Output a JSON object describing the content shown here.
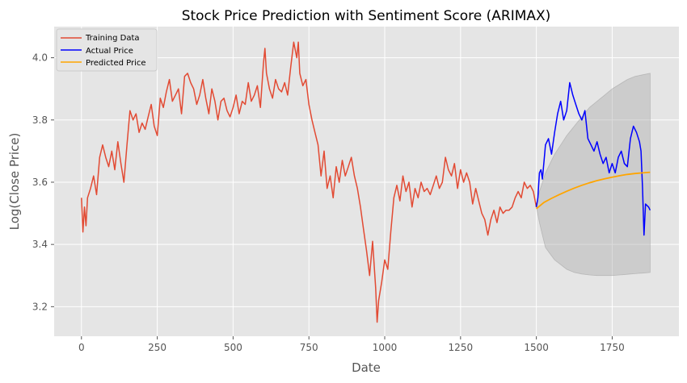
{
  "chart_data": {
    "type": "line",
    "title": "Stock Price Prediction with Sentiment Score (ARIMAX)",
    "xlabel": "Date",
    "ylabel": "Log(Close Price)",
    "xlim": [
      -90,
      1970
    ],
    "ylim": [
      3.105,
      4.1
    ],
    "x_ticks": [
      0,
      250,
      500,
      750,
      1000,
      1250,
      1500,
      1750
    ],
    "y_ticks": [
      3.2,
      3.4,
      3.6,
      3.8,
      4.0
    ],
    "y_tick_labels": [
      "3.2",
      "3.4",
      "3.6",
      "3.8",
      "4.0"
    ],
    "grid": true,
    "legend_position": "top-left",
    "series": [
      {
        "name": "Training Data",
        "color": "#e24a33",
        "x": [
          0,
          5,
          10,
          15,
          20,
          30,
          40,
          50,
          60,
          70,
          80,
          90,
          100,
          110,
          120,
          130,
          140,
          150,
          160,
          170,
          180,
          190,
          200,
          210,
          220,
          230,
          240,
          250,
          260,
          270,
          280,
          290,
          300,
          310,
          320,
          330,
          340,
          350,
          360,
          370,
          380,
          390,
          400,
          410,
          420,
          430,
          440,
          450,
          460,
          470,
          480,
          490,
          500,
          510,
          520,
          530,
          540,
          550,
          560,
          570,
          580,
          590,
          600,
          605,
          610,
          620,
          630,
          640,
          650,
          660,
          670,
          680,
          690,
          700,
          710,
          715,
          720,
          730,
          740,
          750,
          760,
          770,
          780,
          790,
          800,
          810,
          820,
          830,
          840,
          850,
          860,
          870,
          880,
          890,
          900,
          910,
          920,
          930,
          940,
          950,
          960,
          970,
          975,
          980,
          990,
          1000,
          1010,
          1020,
          1030,
          1040,
          1050,
          1060,
          1070,
          1080,
          1090,
          1100,
          1110,
          1120,
          1130,
          1140,
          1150,
          1160,
          1170,
          1180,
          1190,
          1200,
          1210,
          1220,
          1230,
          1240,
          1250,
          1260,
          1270,
          1280,
          1290,
          1300,
          1310,
          1320,
          1330,
          1340,
          1350,
          1360,
          1370,
          1380,
          1390,
          1400,
          1410,
          1420,
          1430,
          1440,
          1450,
          1460,
          1470,
          1480,
          1490,
          1500
        ],
        "y": [
          3.55,
          3.44,
          3.52,
          3.46,
          3.55,
          3.58,
          3.62,
          3.56,
          3.68,
          3.72,
          3.68,
          3.65,
          3.7,
          3.64,
          3.73,
          3.66,
          3.6,
          3.72,
          3.83,
          3.8,
          3.82,
          3.76,
          3.79,
          3.77,
          3.81,
          3.85,
          3.78,
          3.75,
          3.87,
          3.84,
          3.89,
          3.93,
          3.86,
          3.88,
          3.9,
          3.82,
          3.94,
          3.95,
          3.92,
          3.9,
          3.85,
          3.88,
          3.93,
          3.87,
          3.82,
          3.9,
          3.86,
          3.8,
          3.86,
          3.87,
          3.83,
          3.81,
          3.84,
          3.88,
          3.82,
          3.86,
          3.85,
          3.92,
          3.86,
          3.88,
          3.91,
          3.84,
          3.98,
          4.03,
          3.95,
          3.9,
          3.87,
          3.93,
          3.9,
          3.89,
          3.92,
          3.88,
          3.97,
          4.05,
          4.0,
          4.05,
          3.95,
          3.91,
          3.93,
          3.85,
          3.8,
          3.76,
          3.72,
          3.62,
          3.7,
          3.58,
          3.62,
          3.55,
          3.65,
          3.6,
          3.67,
          3.62,
          3.65,
          3.68,
          3.62,
          3.58,
          3.52,
          3.45,
          3.38,
          3.3,
          3.41,
          3.26,
          3.15,
          3.22,
          3.28,
          3.35,
          3.32,
          3.44,
          3.55,
          3.59,
          3.54,
          3.62,
          3.57,
          3.6,
          3.52,
          3.58,
          3.55,
          3.6,
          3.57,
          3.58,
          3.56,
          3.59,
          3.62,
          3.58,
          3.6,
          3.68,
          3.64,
          3.62,
          3.66,
          3.58,
          3.64,
          3.6,
          3.63,
          3.6,
          3.53,
          3.58,
          3.54,
          3.5,
          3.48,
          3.43,
          3.48,
          3.51,
          3.47,
          3.52,
          3.5,
          3.51,
          3.51,
          3.52,
          3.55,
          3.57,
          3.55,
          3.6,
          3.58,
          3.59,
          3.57,
          3.52
        ]
      },
      {
        "name": "Actual Price",
        "color": "#0000ff",
        "x": [
          1500,
          1505,
          1510,
          1515,
          1520,
          1530,
          1540,
          1550,
          1560,
          1570,
          1580,
          1590,
          1600,
          1610,
          1615,
          1620,
          1630,
          1640,
          1650,
          1660,
          1670,
          1680,
          1690,
          1700,
          1710,
          1720,
          1730,
          1740,
          1750,
          1760,
          1770,
          1780,
          1790,
          1800,
          1810,
          1820,
          1830,
          1840,
          1845,
          1850,
          1855,
          1860,
          1870,
          1875
        ],
        "y": [
          3.52,
          3.55,
          3.63,
          3.64,
          3.61,
          3.72,
          3.74,
          3.69,
          3.76,
          3.82,
          3.86,
          3.8,
          3.83,
          3.92,
          3.9,
          3.88,
          3.85,
          3.82,
          3.8,
          3.83,
          3.74,
          3.72,
          3.7,
          3.73,
          3.69,
          3.66,
          3.68,
          3.63,
          3.66,
          3.63,
          3.68,
          3.7,
          3.66,
          3.65,
          3.74,
          3.78,
          3.76,
          3.73,
          3.7,
          3.58,
          3.43,
          3.53,
          3.52,
          3.51
        ]
      },
      {
        "name": "Predicted Price",
        "color": "#ffa500",
        "x": [
          1500,
          1525,
          1550,
          1575,
          1600,
          1625,
          1650,
          1675,
          1700,
          1725,
          1750,
          1775,
          1800,
          1825,
          1850,
          1875
        ],
        "y": [
          3.515,
          3.535,
          3.548,
          3.56,
          3.571,
          3.581,
          3.59,
          3.598,
          3.605,
          3.611,
          3.616,
          3.621,
          3.625,
          3.628,
          3.63,
          3.632
        ]
      }
    ],
    "confidence_band": {
      "color": "#aaaaaa",
      "x": [
        1500,
        1510,
        1520,
        1530,
        1545,
        1560,
        1580,
        1600,
        1625,
        1650,
        1675,
        1700,
        1725,
        1750,
        1775,
        1800,
        1825,
        1850,
        1875
      ],
      "upper": [
        3.53,
        3.57,
        3.6,
        3.63,
        3.66,
        3.69,
        3.72,
        3.75,
        3.78,
        3.81,
        3.84,
        3.86,
        3.88,
        3.9,
        3.915,
        3.93,
        3.94,
        3.945,
        3.95
      ],
      "lower": [
        3.52,
        3.47,
        3.43,
        3.39,
        3.37,
        3.35,
        3.335,
        3.32,
        3.31,
        3.305,
        3.302,
        3.3,
        3.3,
        3.3,
        3.302,
        3.304,
        3.306,
        3.308,
        3.31
      ]
    }
  }
}
